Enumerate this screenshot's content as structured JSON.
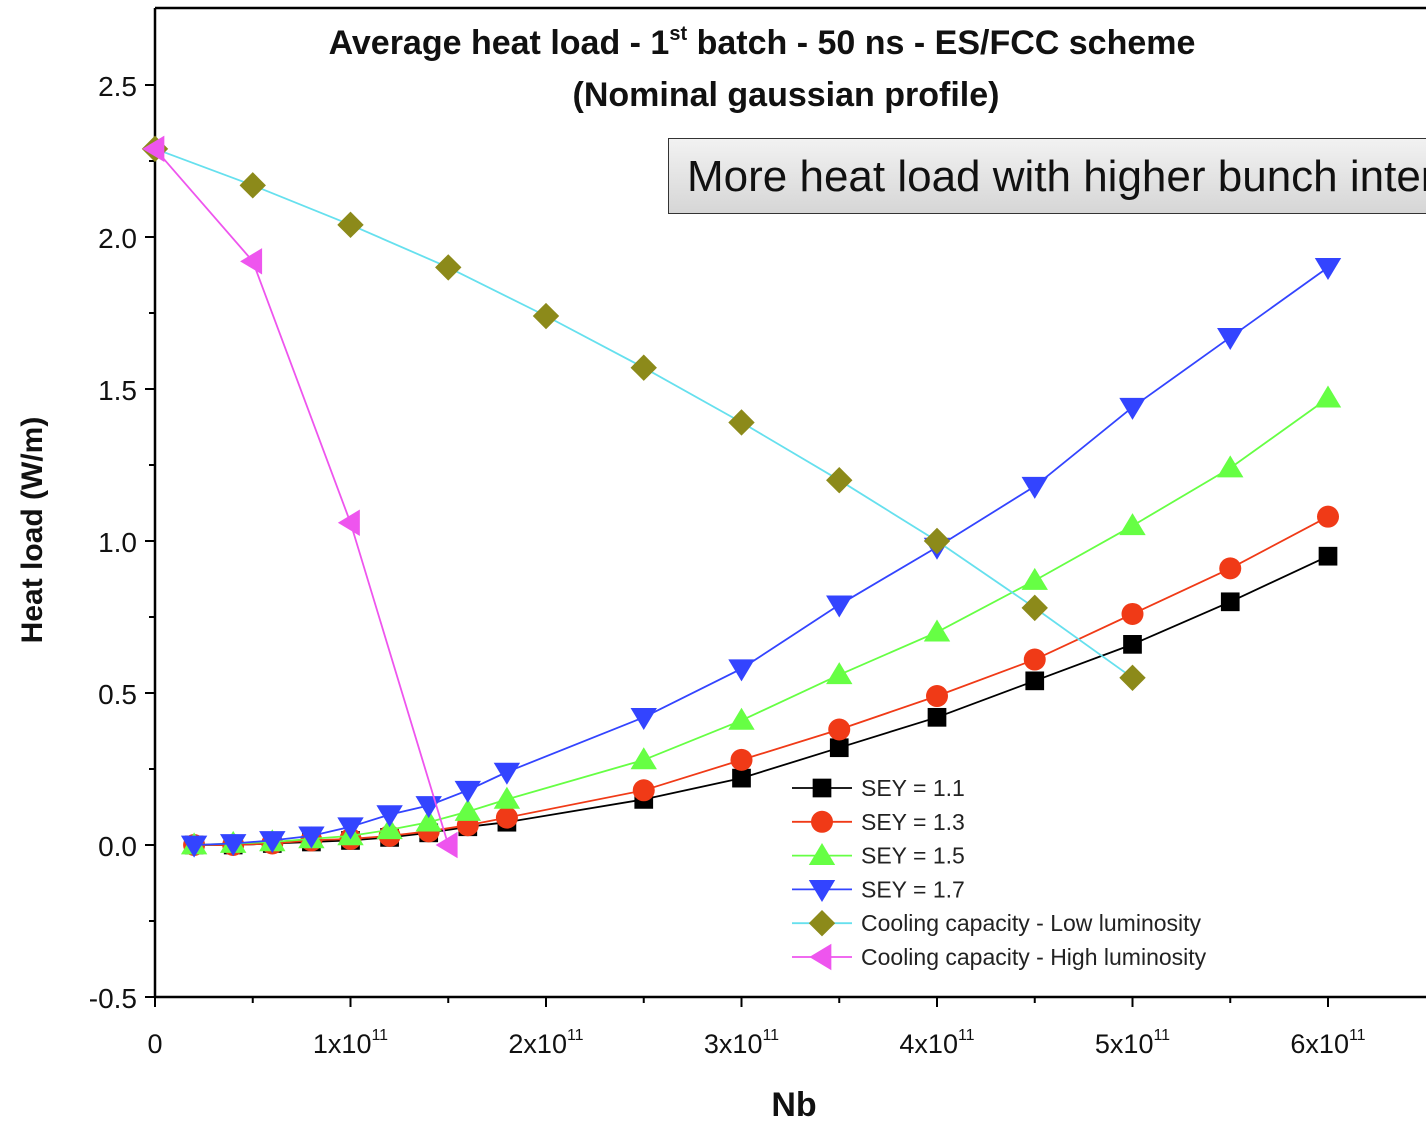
{
  "chart_data": {
    "type": "line",
    "title_line1": {
      "main": "Average heat load - 1",
      "sup": "st",
      "rest": " batch - 50 ns -  ES/FCC scheme"
    },
    "title_line2": "(Nominal gaussian profile)",
    "callout": "More heat load with higher bunch intensity",
    "xlabel": "Nb",
    "ylabel": "Heat load (W/m)",
    "xlim": [
      0,
      620000000000.0
    ],
    "ylim": [
      -0.5,
      2.75
    ],
    "x_ticks": [
      {
        "value": 0,
        "mantissa": "0",
        "exp": ""
      },
      {
        "value": 100000000000.0,
        "mantissa": "1x10",
        "exp": "11"
      },
      {
        "value": 200000000000.0,
        "mantissa": "2x10",
        "exp": "11"
      },
      {
        "value": 300000000000.0,
        "mantissa": "3x10",
        "exp": "11"
      },
      {
        "value": 400000000000.0,
        "mantissa": "4x10",
        "exp": "11"
      },
      {
        "value": 500000000000.0,
        "mantissa": "5x10",
        "exp": "11"
      },
      {
        "value": 600000000000.0,
        "mantissa": "6x10",
        "exp": "11"
      }
    ],
    "y_ticks": [
      "-0.5",
      "0.0",
      "0.5",
      "1.0",
      "1.5",
      "2.0",
      "2.5"
    ],
    "legend_position": "bottom-center",
    "series": [
      {
        "name": "SEY = 1.1",
        "marker": "square",
        "marker_color": "#000000",
        "line_color": "#000000",
        "x": [
          20000000000.0,
          40000000000.0,
          60000000000.0,
          80000000000.0,
          100000000000.0,
          120000000000.0,
          140000000000.0,
          160000000000.0,
          180000000000.0,
          250000000000.0,
          300000000000.0,
          350000000000.0,
          400000000000.0,
          450000000000.0,
          500000000000.0,
          550000000000.0,
          600000000000.0
        ],
        "y": [
          0.0,
          0.0,
          0.005,
          0.01,
          0.015,
          0.025,
          0.04,
          0.06,
          0.075,
          0.15,
          0.22,
          0.32,
          0.42,
          0.54,
          0.66,
          0.8,
          0.95
        ]
      },
      {
        "name": "SEY = 1.3",
        "marker": "circle",
        "marker_color": "#f03a17",
        "line_color": "#f03a17",
        "x": [
          20000000000.0,
          40000000000.0,
          60000000000.0,
          80000000000.0,
          100000000000.0,
          120000000000.0,
          140000000000.0,
          160000000000.0,
          180000000000.0,
          250000000000.0,
          300000000000.0,
          350000000000.0,
          400000000000.0,
          450000000000.0,
          500000000000.0,
          550000000000.0,
          600000000000.0
        ],
        "y": [
          0.0,
          0.0,
          0.005,
          0.015,
          0.02,
          0.03,
          0.045,
          0.065,
          0.09,
          0.18,
          0.28,
          0.38,
          0.49,
          0.61,
          0.76,
          0.91,
          1.08
        ]
      },
      {
        "name": "SEY = 1.5",
        "marker": "triangle-up",
        "marker_color": "#66ff44",
        "line_color": "#66ff44",
        "x": [
          20000000000.0,
          40000000000.0,
          60000000000.0,
          80000000000.0,
          100000000000.0,
          120000000000.0,
          140000000000.0,
          160000000000.0,
          180000000000.0,
          250000000000.0,
          300000000000.0,
          350000000000.0,
          400000000000.0,
          450000000000.0,
          500000000000.0,
          550000000000.0,
          600000000000.0
        ],
        "y": [
          0.0,
          0.005,
          0.01,
          0.02,
          0.03,
          0.05,
          0.075,
          0.11,
          0.15,
          0.28,
          0.41,
          0.56,
          0.7,
          0.87,
          1.05,
          1.24,
          1.47
        ]
      },
      {
        "name": "SEY = 1.7",
        "marker": "triangle-down",
        "marker_color": "#3344ff",
        "line_color": "#3344ff",
        "x": [
          20000000000.0,
          40000000000.0,
          60000000000.0,
          80000000000.0,
          100000000000.0,
          120000000000.0,
          140000000000.0,
          160000000000.0,
          180000000000.0,
          250000000000.0,
          300000000000.0,
          350000000000.0,
          400000000000.0,
          450000000000.0,
          500000000000.0,
          550000000000.0,
          600000000000.0
        ],
        "y": [
          0.0,
          0.005,
          0.015,
          0.03,
          0.06,
          0.1,
          0.13,
          0.18,
          0.24,
          0.42,
          0.58,
          0.79,
          0.98,
          1.18,
          1.44,
          1.67,
          1.9
        ]
      },
      {
        "name": "Cooling capacity - Low luminosity",
        "marker": "diamond",
        "marker_color": "#8c8a1a",
        "line_color": "#66e0ee",
        "x": [
          0,
          50000000000.0,
          100000000000.0,
          150000000000.0,
          200000000000.0,
          250000000000.0,
          300000000000.0,
          350000000000.0,
          400000000000.0,
          450000000000.0,
          500000000000.0
        ],
        "y": [
          2.29,
          2.17,
          2.04,
          1.9,
          1.74,
          1.57,
          1.39,
          1.2,
          1.0,
          0.78,
          0.55
        ]
      },
      {
        "name": "Cooling capacity - High luminosity",
        "marker": "triangle-left",
        "marker_color": "#ee55ee",
        "line_color": "#ee55ee",
        "x": [
          0,
          50000000000.0,
          100000000000.0,
          150000000000.0
        ],
        "y": [
          2.29,
          1.92,
          1.06,
          0.0
        ]
      }
    ]
  }
}
